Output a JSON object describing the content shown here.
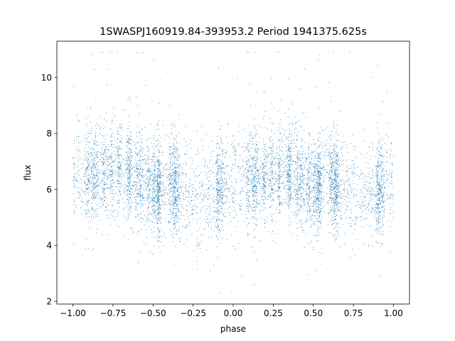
{
  "chart_data": {
    "type": "scatter",
    "title": "1SWASPJ160919.84-393953.2 Period 1941375.625s",
    "xlabel": "phase",
    "ylabel": "flux",
    "xlim": [
      -1.1,
      1.1
    ],
    "ylim": [
      1.9,
      11.3
    ],
    "xticks": [
      -1.0,
      -0.75,
      -0.5,
      -0.25,
      0.0,
      0.25,
      0.5,
      0.75,
      1.0
    ],
    "xtick_labels": [
      "−1.00",
      "−0.75",
      "−0.50",
      "−0.25",
      "0.00",
      "0.25",
      "0.50",
      "0.75",
      "1.00"
    ],
    "yticks": [
      2,
      4,
      6,
      8,
      10
    ],
    "ytick_labels": [
      "2",
      "4",
      "6",
      "8",
      "10"
    ],
    "grid": false,
    "legend": "none",
    "point_color": "#1f77b4",
    "series": [
      {
        "approx_point_count": 7000,
        "x_range": [
          -1.0,
          1.0
        ],
        "typical_y_range": [
          4.4,
          8.4
        ],
        "baseline_y": 6.0,
        "extreme_y": [
          2.3,
          10.9
        ],
        "phase_profile": [
          [
            -1.0,
            6.3
          ],
          [
            -0.9,
            6.6
          ],
          [
            -0.8,
            6.5
          ],
          [
            -0.7,
            6.7
          ],
          [
            -0.6,
            6.4
          ],
          [
            -0.5,
            6.0
          ],
          [
            -0.4,
            6.2
          ],
          [
            -0.3,
            5.9
          ],
          [
            -0.2,
            5.8
          ],
          [
            -0.1,
            5.9
          ],
          [
            0.0,
            6.3
          ],
          [
            0.1,
            6.5
          ],
          [
            0.2,
            6.4
          ],
          [
            0.3,
            6.7
          ],
          [
            0.4,
            6.4
          ],
          [
            0.5,
            6.0
          ],
          [
            0.6,
            6.3
          ],
          [
            0.7,
            5.9
          ],
          [
            0.8,
            5.7
          ],
          [
            0.9,
            5.9
          ],
          [
            1.0,
            6.3
          ]
        ]
      }
    ]
  }
}
